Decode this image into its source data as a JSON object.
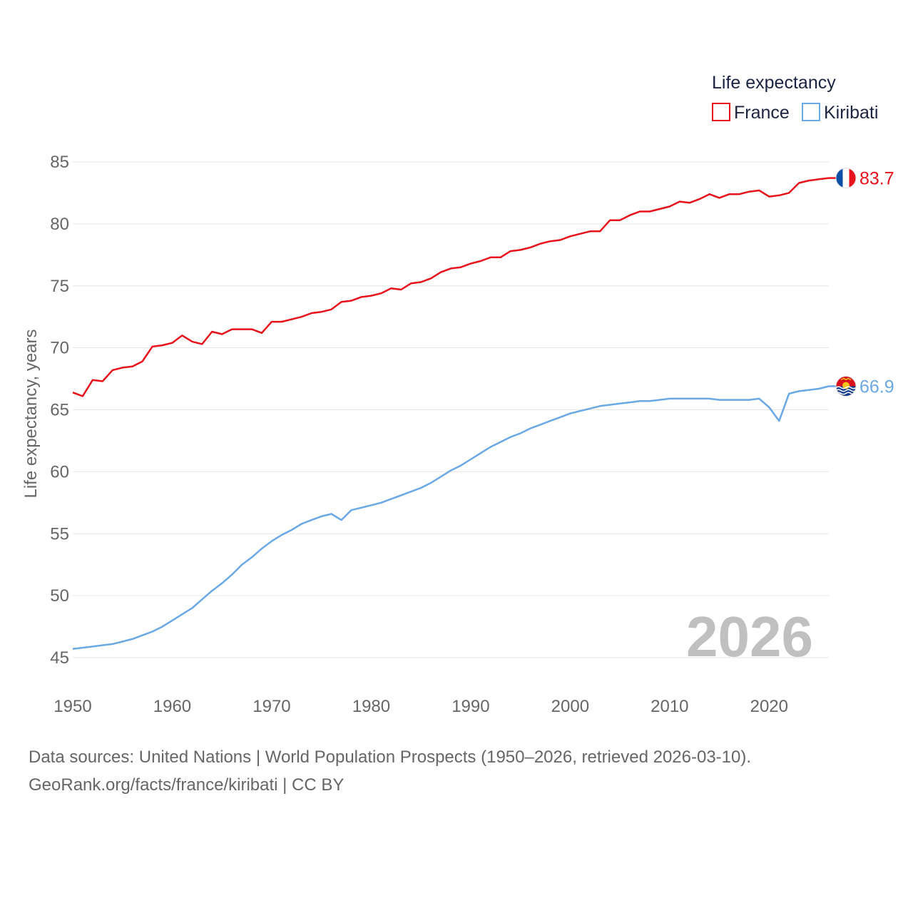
{
  "chart_data": {
    "type": "line",
    "title": "",
    "xlabel": "",
    "ylabel": "Life expectancy, years",
    "xlim": [
      1950,
      2026
    ],
    "ylim": [
      45,
      85
    ],
    "x_ticks": [
      "1950",
      "1960",
      "1970",
      "1980",
      "1990",
      "2000",
      "2010",
      "2020"
    ],
    "y_ticks": [
      "45",
      "50",
      "55",
      "60",
      "65",
      "70",
      "75",
      "80",
      "85"
    ],
    "legend": {
      "title": "Life expectancy",
      "placement": "top-right",
      "entries": [
        "France",
        "Kiribati"
      ]
    },
    "current_year": "2026",
    "x": [
      1950,
      1951,
      1952,
      1953,
      1954,
      1955,
      1956,
      1957,
      1958,
      1959,
      1960,
      1961,
      1962,
      1963,
      1964,
      1965,
      1966,
      1967,
      1968,
      1969,
      1970,
      1971,
      1972,
      1973,
      1974,
      1975,
      1976,
      1977,
      1978,
      1979,
      1980,
      1981,
      1982,
      1983,
      1984,
      1985,
      1986,
      1987,
      1988,
      1989,
      1990,
      1991,
      1992,
      1993,
      1994,
      1995,
      1996,
      1997,
      1998,
      1999,
      2000,
      2001,
      2002,
      2003,
      2004,
      2005,
      2006,
      2007,
      2008,
      2009,
      2010,
      2011,
      2012,
      2013,
      2014,
      2015,
      2016,
      2017,
      2018,
      2019,
      2020,
      2021,
      2022,
      2023,
      2024,
      2025,
      2026
    ],
    "series": [
      {
        "name": "France",
        "color": "#e8121c",
        "end_label": "83.7",
        "values": [
          66.4,
          66.1,
          67.4,
          67.3,
          68.2,
          68.4,
          68.5,
          68.9,
          70.1,
          70.2,
          70.4,
          71.0,
          70.5,
          70.3,
          71.3,
          71.1,
          71.5,
          71.5,
          71.5,
          71.2,
          72.1,
          72.1,
          72.3,
          72.5,
          72.8,
          72.9,
          73.1,
          73.7,
          73.8,
          74.1,
          74.2,
          74.4,
          74.8,
          74.7,
          75.2,
          75.3,
          75.6,
          76.1,
          76.4,
          76.5,
          76.8,
          77.0,
          77.3,
          77.3,
          77.8,
          77.9,
          78.1,
          78.4,
          78.6,
          78.7,
          79.0,
          79.2,
          79.4,
          79.4,
          80.3,
          80.3,
          80.7,
          81.0,
          81.0,
          81.2,
          81.4,
          81.8,
          81.7,
          82.0,
          82.4,
          82.1,
          82.4,
          82.4,
          82.6,
          82.7,
          82.2,
          82.3,
          82.5,
          83.3,
          83.5,
          83.6,
          83.7
        ]
      },
      {
        "name": "Kiribati",
        "color": "#6aa8e6",
        "end_label": "66.9",
        "values": [
          45.7,
          45.8,
          45.9,
          46.0,
          46.1,
          46.3,
          46.5,
          46.8,
          47.1,
          47.5,
          48.0,
          48.5,
          49.0,
          49.7,
          50.4,
          51.0,
          51.7,
          52.5,
          53.1,
          53.8,
          54.4,
          54.9,
          55.3,
          55.8,
          56.1,
          56.4,
          56.6,
          56.1,
          56.9,
          57.1,
          57.3,
          57.5,
          57.8,
          58.1,
          58.4,
          58.7,
          59.1,
          59.6,
          60.1,
          60.5,
          61.0,
          61.5,
          62.0,
          62.4,
          62.8,
          63.1,
          63.5,
          63.8,
          64.1,
          64.4,
          64.7,
          64.9,
          65.1,
          65.3,
          65.4,
          65.5,
          65.6,
          65.7,
          65.7,
          65.8,
          65.9,
          65.9,
          65.9,
          65.9,
          65.9,
          65.8,
          65.8,
          65.8,
          65.8,
          65.9,
          65.2,
          64.1,
          66.3,
          66.5,
          66.6,
          66.7,
          66.9
        ]
      }
    ]
  },
  "source": {
    "line1": "Data sources: United Nations | World Population Prospects (1950–2026, retrieved 2026-03-10).",
    "line2": "GeoRank.org/facts/france/kiribati | CC BY"
  },
  "colors": {
    "grid": "#e6e6e6",
    "tick_text": "#666666",
    "legend_text": "#1a2440",
    "france_blue": "#0c4fa8",
    "france_white": "#ffffff",
    "france_red": "#e8121c",
    "kiribati_red": "#d9101c",
    "kiribati_blue": "#103a8c",
    "kiribati_gold": "#f6c21a"
  }
}
